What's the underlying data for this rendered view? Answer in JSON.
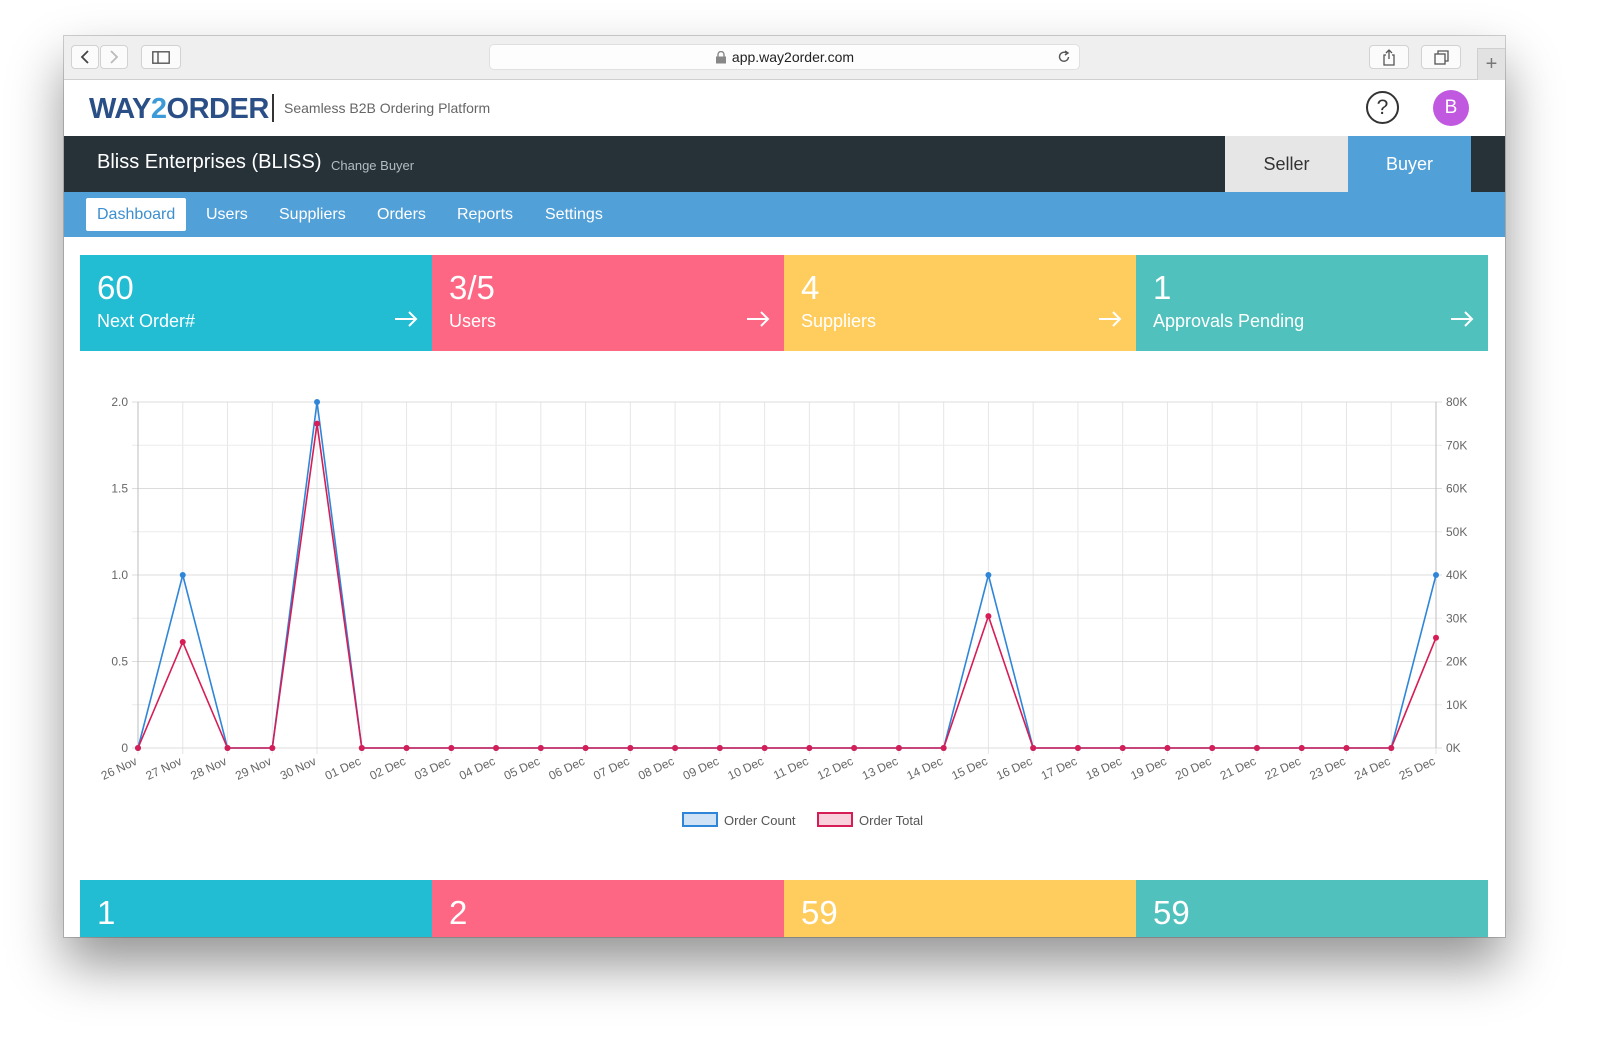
{
  "browser": {
    "url": "app.way2order.com"
  },
  "brand": {
    "logo_part1": "WAY",
    "logo_part2": "2",
    "logo_part3": "ORDER",
    "tagline": "Seamless B2B Ordering Platform"
  },
  "header": {
    "help_label": "?",
    "avatar_initial": "B"
  },
  "account": {
    "company": "Bliss Enterprises (BLISS)",
    "change_buyer": "Change Buyer",
    "seller": "Seller",
    "buyer": "Buyer"
  },
  "nav": {
    "items": [
      "Dashboard",
      "Users",
      "Suppliers",
      "Orders",
      "Reports",
      "Settings"
    ]
  },
  "stats": [
    {
      "value": "60",
      "label": "Next Order#"
    },
    {
      "value": "3/5",
      "label": "Users"
    },
    {
      "value": "4",
      "label": "Suppliers"
    },
    {
      "value": "1",
      "label": "Approvals Pending"
    }
  ],
  "bottom_stats": [
    "1",
    "2",
    "59",
    "59"
  ],
  "colors": {
    "cyan": "#22bcd3",
    "pink": "#fe6783",
    "yellow": "#fecd5e",
    "teal": "#51c1bd",
    "order_count": "#2f86d9",
    "order_total": "#d61d56"
  },
  "chart_data": {
    "type": "line",
    "categories": [
      "26 Nov",
      "27 Nov",
      "28 Nov",
      "29 Nov",
      "30 Nov",
      "01 Dec",
      "02 Dec",
      "03 Dec",
      "04 Dec",
      "05 Dec",
      "06 Dec",
      "07 Dec",
      "08 Dec",
      "09 Dec",
      "10 Dec",
      "11 Dec",
      "12 Dec",
      "13 Dec",
      "14 Dec",
      "15 Dec",
      "16 Dec",
      "17 Dec",
      "18 Dec",
      "19 Dec",
      "20 Dec",
      "21 Dec",
      "22 Dec",
      "23 Dec",
      "24 Dec",
      "25 Dec"
    ],
    "series": [
      {
        "name": "Order Count",
        "axis": "left",
        "values": [
          0,
          1,
          0,
          0,
          2,
          0,
          0,
          0,
          0,
          0,
          0,
          0,
          0,
          0,
          0,
          0,
          0,
          0,
          0,
          1,
          0,
          0,
          0,
          0,
          0,
          0,
          0,
          0,
          0,
          1
        ]
      },
      {
        "name": "Order Total",
        "axis": "right",
        "values": [
          0,
          24500,
          0,
          0,
          75000,
          0,
          0,
          0,
          0,
          0,
          0,
          0,
          0,
          0,
          0,
          0,
          0,
          0,
          0,
          30500,
          0,
          0,
          0,
          0,
          0,
          0,
          0,
          0,
          0,
          25500
        ]
      }
    ],
    "left_axis": {
      "ylim": [
        0,
        2
      ],
      "ticks": [
        "0",
        "0.5",
        "1.0",
        "1.5",
        "2.0"
      ]
    },
    "right_axis": {
      "ylim": [
        0,
        80000
      ],
      "ticks": [
        "0K",
        "10K",
        "20K",
        "30K",
        "40K",
        "50K",
        "60K",
        "70K",
        "80K"
      ]
    },
    "grid": true,
    "legend_position": "bottom"
  }
}
